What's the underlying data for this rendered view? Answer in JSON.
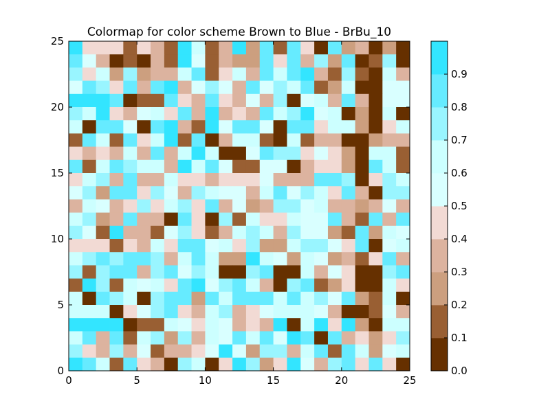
{
  "chart_data": {
    "type": "heatmap",
    "title": "Colormap for color scheme Brown to Blue - BrBu_10",
    "xlabel": "",
    "ylabel": "",
    "xlim": [
      0,
      25
    ],
    "ylim": [
      0,
      25
    ],
    "x_ticks": [
      "0",
      "5",
      "10",
      "15",
      "20",
      "25"
    ],
    "y_ticks": [
      "0",
      "5",
      "10",
      "15",
      "20",
      "25"
    ],
    "grid": false,
    "colorbar": {
      "range": [
        0,
        1
      ],
      "ticks": [
        "0.0",
        "0.1",
        "0.2",
        "0.3",
        "0.4",
        "0.5",
        "0.6",
        "0.7",
        "0.8",
        "0.9"
      ],
      "colors": [
        "#663000",
        "#995f33",
        "#cc9f7f",
        "#dcb39f",
        "#f2dad4",
        "#d9ffff",
        "#ccffff",
        "#99f5ff",
        "#66ebff",
        "#33e5ff"
      ]
    },
    "rows_top_to_bottom": [
      [
        9,
        4,
        4,
        4,
        1,
        4,
        3,
        1,
        9,
        6,
        1,
        3,
        9,
        2,
        8,
        1,
        8,
        4,
        0,
        8,
        2,
        3,
        0,
        2,
        0
      ],
      [
        8,
        5,
        3,
        0,
        1,
        0,
        3,
        1,
        9,
        5,
        1,
        3,
        2,
        2,
        8,
        4,
        8,
        3,
        7,
        2,
        8,
        0,
        1,
        7,
        0
      ],
      [
        7,
        4,
        6,
        2,
        7,
        2,
        3,
        3,
        6,
        8,
        1,
        4,
        6,
        3,
        8,
        6,
        8,
        9,
        3,
        1,
        7,
        1,
        0,
        6,
        3
      ],
      [
        5,
        8,
        7,
        4,
        8,
        3,
        8,
        9,
        3,
        5,
        7,
        5,
        3,
        8,
        5,
        7,
        6,
        8,
        1,
        2,
        6,
        0,
        0,
        5,
        5
      ],
      [
        9,
        9,
        9,
        8,
        0,
        1,
        1,
        8,
        4,
        3,
        8,
        4,
        3,
        5,
        3,
        7,
        0,
        5,
        6,
        3,
        8,
        3,
        0,
        5,
        5
      ],
      [
        7,
        6,
        9,
        4,
        3,
        5,
        6,
        4,
        8,
        3,
        9,
        3,
        4,
        3,
        8,
        6,
        7,
        9,
        5,
        6,
        0,
        2,
        0,
        6,
        0
      ],
      [
        6,
        0,
        8,
        8,
        5,
        0,
        8,
        9,
        3,
        1,
        9,
        5,
        8,
        8,
        5,
        0,
        8,
        8,
        4,
        6,
        6,
        2,
        0,
        4,
        6
      ],
      [
        1,
        8,
        6,
        1,
        8,
        4,
        6,
        9,
        1,
        8,
        0,
        3,
        6,
        6,
        1,
        0,
        6,
        1,
        3,
        3,
        0,
        0,
        2,
        3,
        3
      ],
      [
        4,
        3,
        4,
        3,
        6,
        3,
        8,
        3,
        6,
        9,
        6,
        0,
        0,
        5,
        8,
        7,
        7,
        4,
        5,
        4,
        2,
        0,
        6,
        6,
        1
      ],
      [
        8,
        1,
        6,
        8,
        7,
        6,
        6,
        3,
        9,
        6,
        8,
        5,
        1,
        1,
        5,
        5,
        0,
        3,
        4,
        4,
        2,
        0,
        8,
        6,
        1
      ],
      [
        4,
        6,
        7,
        3,
        8,
        3,
        3,
        6,
        4,
        4,
        3,
        4,
        4,
        4,
        5,
        3,
        3,
        3,
        8,
        8,
        7,
        0,
        4,
        7,
        6
      ],
      [
        5,
        7,
        2,
        8,
        8,
        4,
        7,
        5,
        3,
        7,
        6,
        5,
        5,
        3,
        6,
        8,
        5,
        7,
        6,
        4,
        8,
        3,
        0,
        7,
        7
      ],
      [
        3,
        6,
        5,
        3,
        4,
        7,
        4,
        6,
        7,
        4,
        8,
        3,
        5,
        2,
        3,
        7,
        7,
        5,
        6,
        3,
        3,
        2,
        3,
        5,
        3
      ],
      [
        6,
        7,
        2,
        3,
        8,
        3,
        3,
        0,
        8,
        4,
        0,
        7,
        1,
        6,
        4,
        4,
        6,
        5,
        5,
        8,
        3,
        1,
        8,
        3,
        8
      ],
      [
        7,
        5,
        1,
        9,
        3,
        3,
        1,
        5,
        7,
        4,
        1,
        3,
        6,
        7,
        6,
        3,
        7,
        5,
        5,
        2,
        1,
        8,
        2,
        6,
        5
      ],
      [
        4,
        4,
        4,
        1,
        4,
        3,
        6,
        4,
        8,
        8,
        5,
        6,
        4,
        7,
        2,
        2,
        6,
        7,
        7,
        5,
        4,
        8,
        0,
        5,
        6
      ],
      [
        6,
        7,
        8,
        7,
        8,
        8,
        7,
        3,
        6,
        8,
        6,
        2,
        2,
        9,
        6,
        5,
        2,
        6,
        5,
        2,
        3,
        1,
        4,
        8,
        3
      ],
      [
        7,
        1,
        7,
        8,
        8,
        3,
        7,
        8,
        5,
        7,
        6,
        0,
        0,
        7,
        8,
        0,
        0,
        6,
        3,
        5,
        4,
        0,
        0,
        7,
        8
      ],
      [
        1,
        9,
        7,
        1,
        6,
        5,
        6,
        4,
        8,
        9,
        5,
        7,
        8,
        6,
        3,
        0,
        7,
        8,
        1,
        2,
        4,
        0,
        0,
        6,
        4
      ],
      [
        6,
        0,
        8,
        7,
        6,
        0,
        7,
        8,
        8,
        2,
        8,
        6,
        8,
        8,
        8,
        6,
        8,
        6,
        7,
        5,
        8,
        2,
        1,
        6,
        0
      ],
      [
        6,
        6,
        6,
        0,
        4,
        5,
        7,
        8,
        4,
        3,
        6,
        7,
        3,
        4,
        5,
        6,
        6,
        6,
        5,
        3,
        0,
        0,
        1,
        5,
        3
      ],
      [
        9,
        9,
        9,
        9,
        0,
        1,
        1,
        6,
        5,
        4,
        6,
        5,
        3,
        4,
        3,
        9,
        0,
        6,
        9,
        4,
        9,
        2,
        0,
        6,
        6
      ],
      [
        6,
        8,
        3,
        8,
        1,
        6,
        7,
        2,
        7,
        3,
        6,
        5,
        8,
        6,
        8,
        5,
        9,
        8,
        0,
        8,
        3,
        4,
        2,
        4,
        7
      ],
      [
        7,
        4,
        3,
        7,
        3,
        5,
        1,
        3,
        3,
        4,
        5,
        9,
        5,
        2,
        7,
        7,
        3,
        6,
        8,
        1,
        8,
        6,
        2,
        5,
        6
      ],
      [
        9,
        8,
        6,
        1,
        8,
        4,
        3,
        0,
        7,
        6,
        0,
        4,
        9,
        7,
        2,
        4,
        9,
        5,
        3,
        7,
        8,
        4,
        8,
        4,
        0
      ]
    ]
  }
}
